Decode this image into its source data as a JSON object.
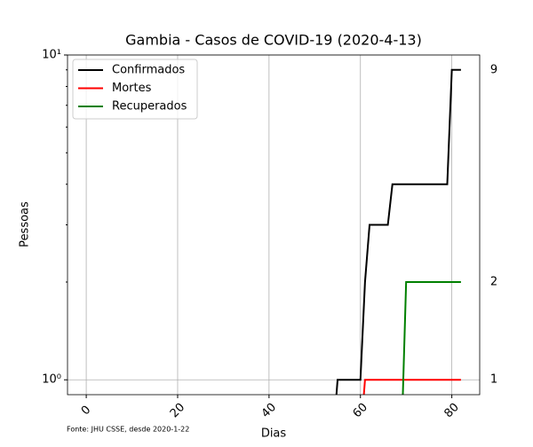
{
  "chart_data": {
    "type": "line",
    "title": "Gambia - Casos de COVID-19 (2020-4-13)",
    "xlabel": "Dias",
    "ylabel": "Pessoas",
    "footnote": "Fonte: JHU CSSE, desde 2020-1-22",
    "x": [
      0,
      54,
      55,
      60,
      61,
      62,
      66,
      67,
      69,
      70,
      79,
      80,
      82
    ],
    "series": [
      {
        "name": "Confirmados",
        "color": "#000000",
        "values": [
          0,
          0,
          1,
          1,
          2,
          3,
          3,
          4,
          4,
          4,
          4,
          9,
          9
        ]
      },
      {
        "name": "Mortes",
        "color": "#ff0000",
        "values": [
          0,
          0,
          0,
          0,
          1,
          1,
          1,
          1,
          1,
          1,
          1,
          1,
          1
        ]
      },
      {
        "name": "Recuperados",
        "color": "#008000",
        "values": [
          0,
          0,
          0,
          0,
          0,
          0,
          0,
          0,
          0,
          2,
          2,
          2,
          2
        ]
      }
    ],
    "xlim": [
      -4.1,
      86.1
    ],
    "xticks": [
      0,
      20,
      40,
      60,
      80
    ],
    "ylim": [
      0.9,
      10
    ],
    "ylog": true,
    "yticks": [
      {
        "value": 1,
        "label": "10⁰"
      },
      {
        "value": 10,
        "label": "10¹"
      }
    ],
    "yminorticks": [
      2,
      3,
      4,
      5,
      6,
      7,
      8,
      9
    ],
    "grid": true,
    "legend": "upper left"
  }
}
